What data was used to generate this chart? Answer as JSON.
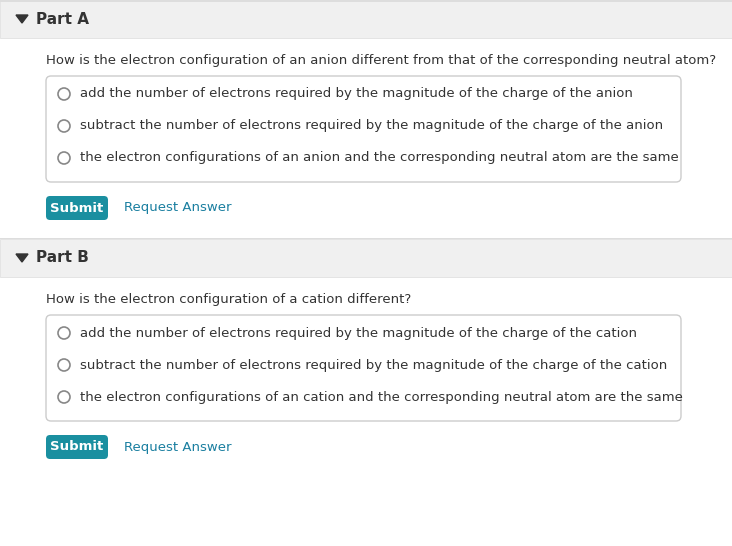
{
  "bg_color": "#ffffff",
  "header_bg": "#f0f0f0",
  "part_a_label": "Part A",
  "part_b_label": "Part B",
  "part_a_question": "How is the electron configuration of an anion different from that of the corresponding neutral atom?",
  "part_b_question": "How is the electron configuration of a cation different?",
  "part_a_options": [
    "add the number of electrons required by the magnitude of the charge of the anion",
    "subtract the number of electrons required by the magnitude of the charge of the anion",
    "the electron configurations of an anion and the corresponding neutral atom are the same"
  ],
  "part_b_options": [
    "add the number of electrons required by the magnitude of the charge of the cation",
    "subtract the number of electrons required by the magnitude of the charge of the cation",
    "the electron configurations of an cation and the corresponding neutral atom are the same"
  ],
  "submit_color": "#1a8fa0",
  "submit_text_color": "#ffffff",
  "submit_label": "Submit",
  "request_answer_label": "Request Answer",
  "request_answer_color": "#1a7fa0",
  "box_border_color": "#cccccc",
  "text_color": "#333333",
  "radio_color": "#888888",
  "arrow_color": "#333333",
  "divider_color": "#dddddd",
  "part_label_fontsize": 11,
  "question_fontsize": 9.5,
  "option_fontsize": 9.5,
  "button_fontsize": 9.5
}
